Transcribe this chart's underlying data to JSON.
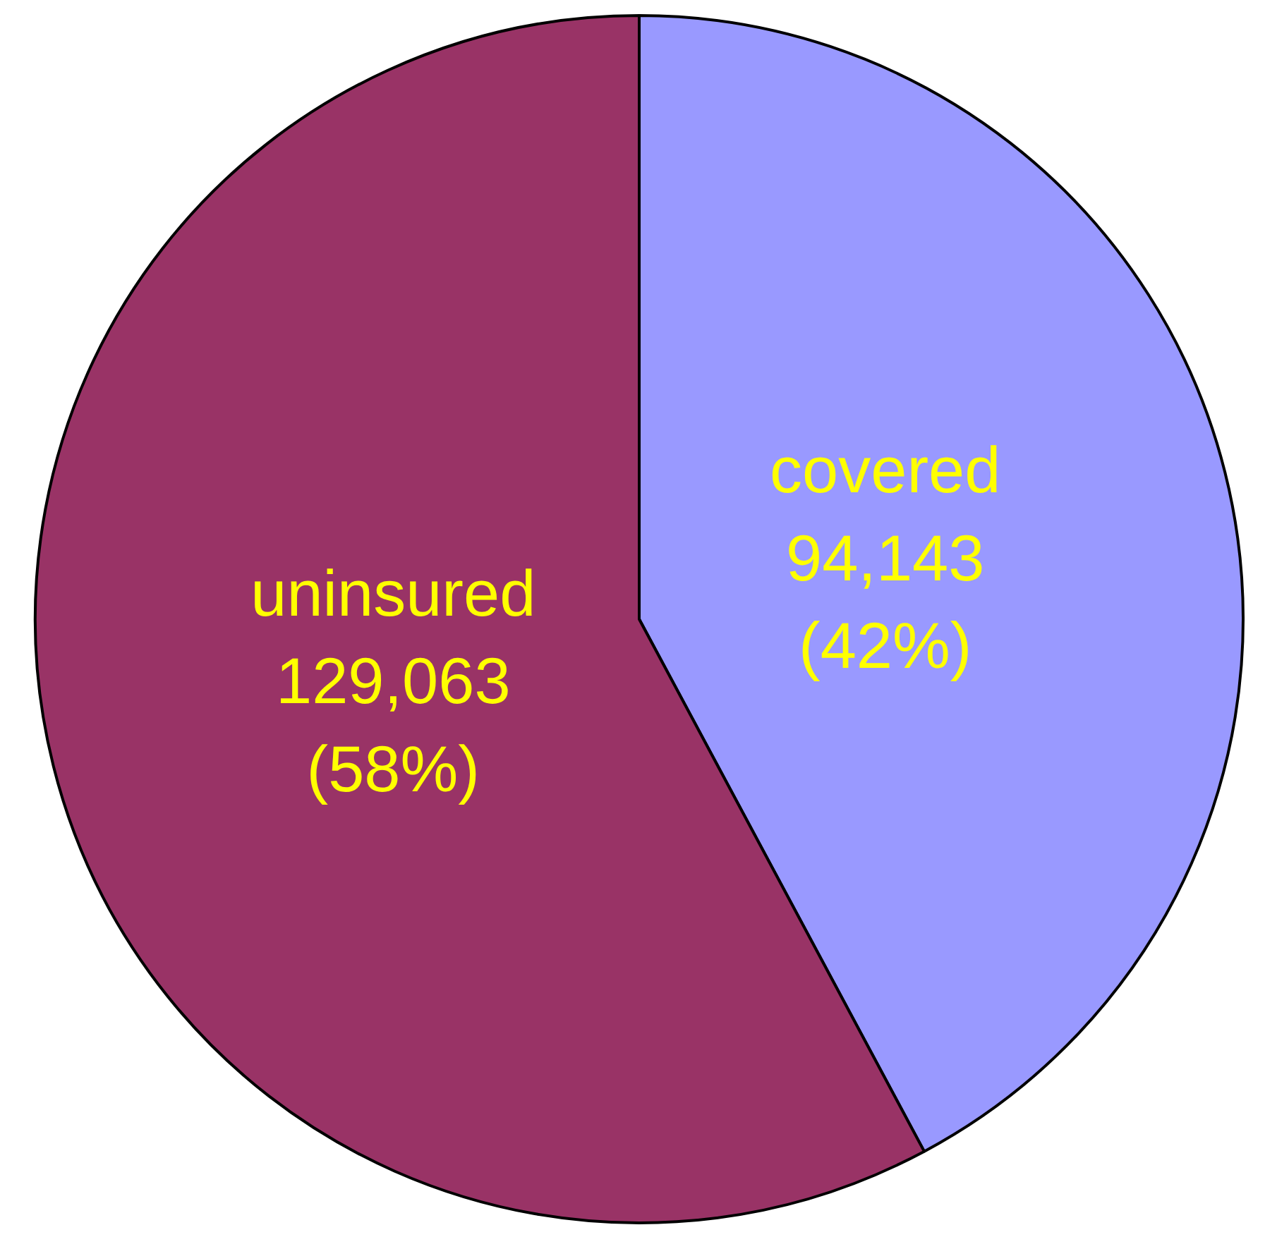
{
  "chart_data": {
    "type": "pie",
    "categories": [
      "covered",
      "uninsured"
    ],
    "values": [
      94143,
      129063
    ],
    "colors": [
      "#9999ff",
      "#993366"
    ],
    "value_labels": [
      "94,143\n(42%)",
      "129,063\n(58%)"
    ],
    "legend": false
  }
}
